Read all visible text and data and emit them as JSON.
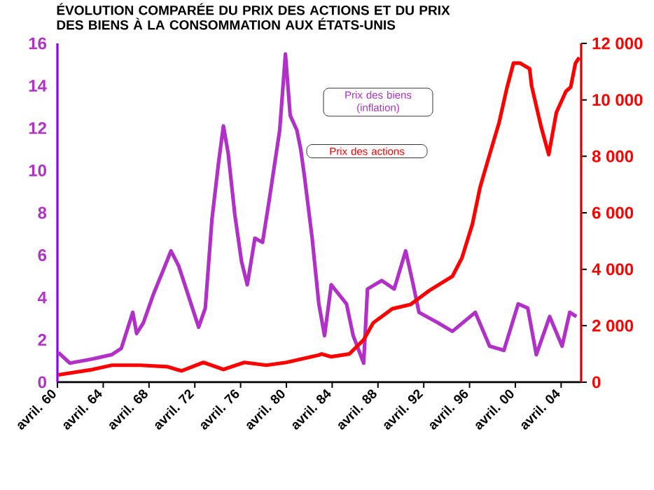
{
  "chart_data": {
    "type": "line",
    "title": "ÉVOLUTION COMPARÉE DU PRIX DES ACTIONS ET DU PRIX DES BIENS À LA CONSOMMATION AUX ÉTATS-UNIS",
    "xlim": [
      "1960-04",
      "2006-01"
    ],
    "xticks": [
      {
        "value": "1960-04",
        "label": "avril. 60"
      },
      {
        "value": "1964-04",
        "label": "avril. 64"
      },
      {
        "value": "1968-04",
        "label": "avril. 68"
      },
      {
        "value": "1972-04",
        "label": "avril. 72"
      },
      {
        "value": "1976-04",
        "label": "avril. 76"
      },
      {
        "value": "1980-04",
        "label": "avril. 80"
      },
      {
        "value": "1984-04",
        "label": "avril. 84"
      },
      {
        "value": "1988-04",
        "label": "avril. 88"
      },
      {
        "value": "1992-04",
        "label": "avril. 92"
      },
      {
        "value": "1996-04",
        "label": "avril. 96"
      },
      {
        "value": "2000-04",
        "label": "avril. 00"
      },
      {
        "value": "2004-04",
        "label": "avril. 04"
      }
    ],
    "ylim": [
      0,
      16
    ],
    "yticks": [
      0,
      2,
      4,
      6,
      8,
      10,
      12,
      14,
      16
    ],
    "y2lim": [
      0,
      12000
    ],
    "y2ticks": [
      0,
      {
        "value": 2000,
        "label": "2 000"
      },
      {
        "value": 4000,
        "label": "4 000"
      },
      {
        "value": 6000,
        "label": "6 000"
      },
      {
        "value": 8000,
        "label": "8 000"
      },
      {
        "value": 10000,
        "label": "10 000"
      },
      {
        "value": 12000,
        "label": "12 000"
      }
    ],
    "series": [
      {
        "name": "Prix des biens (inflation)",
        "color": "#b030c8",
        "axis": "y",
        "x": [
          "1960-05",
          "1961-05",
          "1963-05",
          "1965-01",
          "1965-11",
          "1966-11",
          "1967-03",
          "1967-10",
          "1968-09",
          "1969-07",
          "1970-03",
          "1970-11",
          "1971-07",
          "1972-08",
          "1973-03",
          "1973-10",
          "1974-05",
          "1974-10",
          "1975-03",
          "1975-10",
          "1976-05",
          "1976-11",
          "1977-07",
          "1978-03",
          "1978-10",
          "1979-09",
          "1980-03",
          "1980-08",
          "1981-03",
          "1981-07",
          "1981-11",
          "1982-07",
          "1983-02",
          "1983-08",
          "1984-03",
          "1985-07",
          "1986-02",
          "1987-01",
          "1987-05",
          "1988-08",
          "1989-09",
          "1990-09",
          "1991-04",
          "1991-11",
          "1993-07",
          "1994-10",
          "1996-10",
          "1998-01",
          "1999-04",
          "2000-07",
          "2001-05",
          "2002-02",
          "2003-04",
          "2004-05",
          "2005-01",
          "2005-08"
        ],
        "values": [
          1.4,
          0.9,
          1.1,
          1.3,
          1.6,
          3.3,
          2.3,
          2.8,
          4.2,
          5.3,
          6.2,
          5.5,
          4.4,
          2.6,
          3.5,
          7.7,
          10.4,
          12.1,
          10.8,
          7.9,
          5.7,
          4.6,
          6.8,
          6.6,
          8.6,
          11.9,
          15.5,
          12.6,
          11.9,
          11.0,
          9.7,
          6.8,
          3.7,
          2.2,
          4.6,
          3.7,
          2.2,
          0.9,
          4.4,
          4.8,
          4.4,
          6.2,
          4.8,
          3.3,
          2.8,
          2.4,
          3.3,
          1.7,
          1.5,
          3.7,
          3.5,
          1.3,
          3.1,
          1.7,
          3.3,
          3.1
        ]
      },
      {
        "name": "Prix des actions",
        "color": "#ff0000",
        "axis": "y2",
        "x": [
          "1960-05",
          "1963-05",
          "1965-01",
          "1967-07",
          "1969-11",
          "1971-02",
          "1973-01",
          "1974-10",
          "1976-08",
          "1978-07",
          "1980-04",
          "1983-02",
          "1983-05",
          "1984-03",
          "1985-10",
          "1987-01",
          "1987-11",
          "1989-07",
          "1991-02",
          "1992-10",
          "1994-10",
          "1995-08",
          "1996-07",
          "1997-03",
          "1998-01",
          "1998-11",
          "1999-07",
          "2000-02",
          "2000-09",
          "2001-07",
          "2001-09",
          "2002-07",
          "2003-03",
          "2003-11",
          "2004-09",
          "2005-02",
          "2005-07",
          "2005-11"
        ],
        "values": [
          260,
          450,
          600,
          600,
          550,
          400,
          700,
          450,
          700,
          600,
          700,
          960,
          1000,
          900,
          1000,
          1500,
          2100,
          2600,
          2750,
          3250,
          3750,
          4400,
          5600,
          6900,
          8060,
          9200,
          10400,
          11300,
          11300,
          11100,
          10500,
          9050,
          8060,
          9550,
          10300,
          10450,
          11300,
          11500
        ]
      }
    ]
  }
}
